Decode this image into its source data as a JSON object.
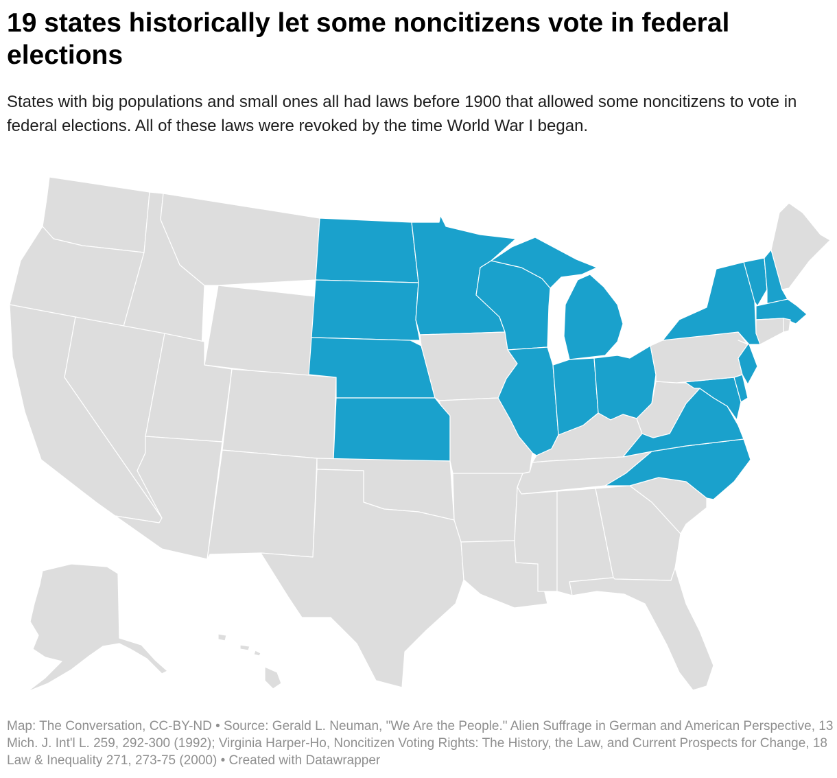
{
  "title": "19 states historically let some noncitizens vote in federal elections",
  "subtitle": "States with big populations and small ones all had laws before 1900 that allowed some noncitizens to vote in federal elections. All of these laws were revoked by the time World War I began.",
  "footer": "Map: The Conversation, CC-BY-ND • Source: Gerald L. Neuman, \"We Are the People.\" Alien Suffrage in German and American Perspective, 13 Mich. J. Int'l L. 259, 292-300 (1992); Virginia Harper-Ho, Noncitizen Voting Rights: The History, the Law, and Current Prospects for Change, 18 Law & Inequality 271, 273-75 (2000) • Created with Datawrapper",
  "colors": {
    "highlight": "#1aa1cc",
    "other": "#dddddd",
    "border": "#ffffff"
  },
  "map": {
    "highlighted_states": [
      "North Dakota",
      "South Dakota",
      "Nebraska",
      "Kansas",
      "Minnesota",
      "Wisconsin",
      "Michigan",
      "Illinois",
      "Indiana",
      "Ohio",
      "New York",
      "Vermont",
      "New Hampshire",
      "Massachusetts",
      "New Jersey",
      "Delaware",
      "Maryland",
      "Virginia",
      "North Carolina"
    ],
    "other_states": [
      "Washington",
      "Oregon",
      "California",
      "Idaho",
      "Nevada",
      "Montana",
      "Wyoming",
      "Utah",
      "Arizona",
      "Colorado",
      "New Mexico",
      "Texas",
      "Oklahoma",
      "Iowa",
      "Missouri",
      "Arkansas",
      "Louisiana",
      "Kentucky",
      "Tennessee",
      "Mississippi",
      "Alabama",
      "Georgia",
      "Florida",
      "South Carolina",
      "West Virginia",
      "Pennsylvania",
      "Connecticut",
      "Rhode Island",
      "Maine",
      "Alaska",
      "Hawaii"
    ]
  }
}
